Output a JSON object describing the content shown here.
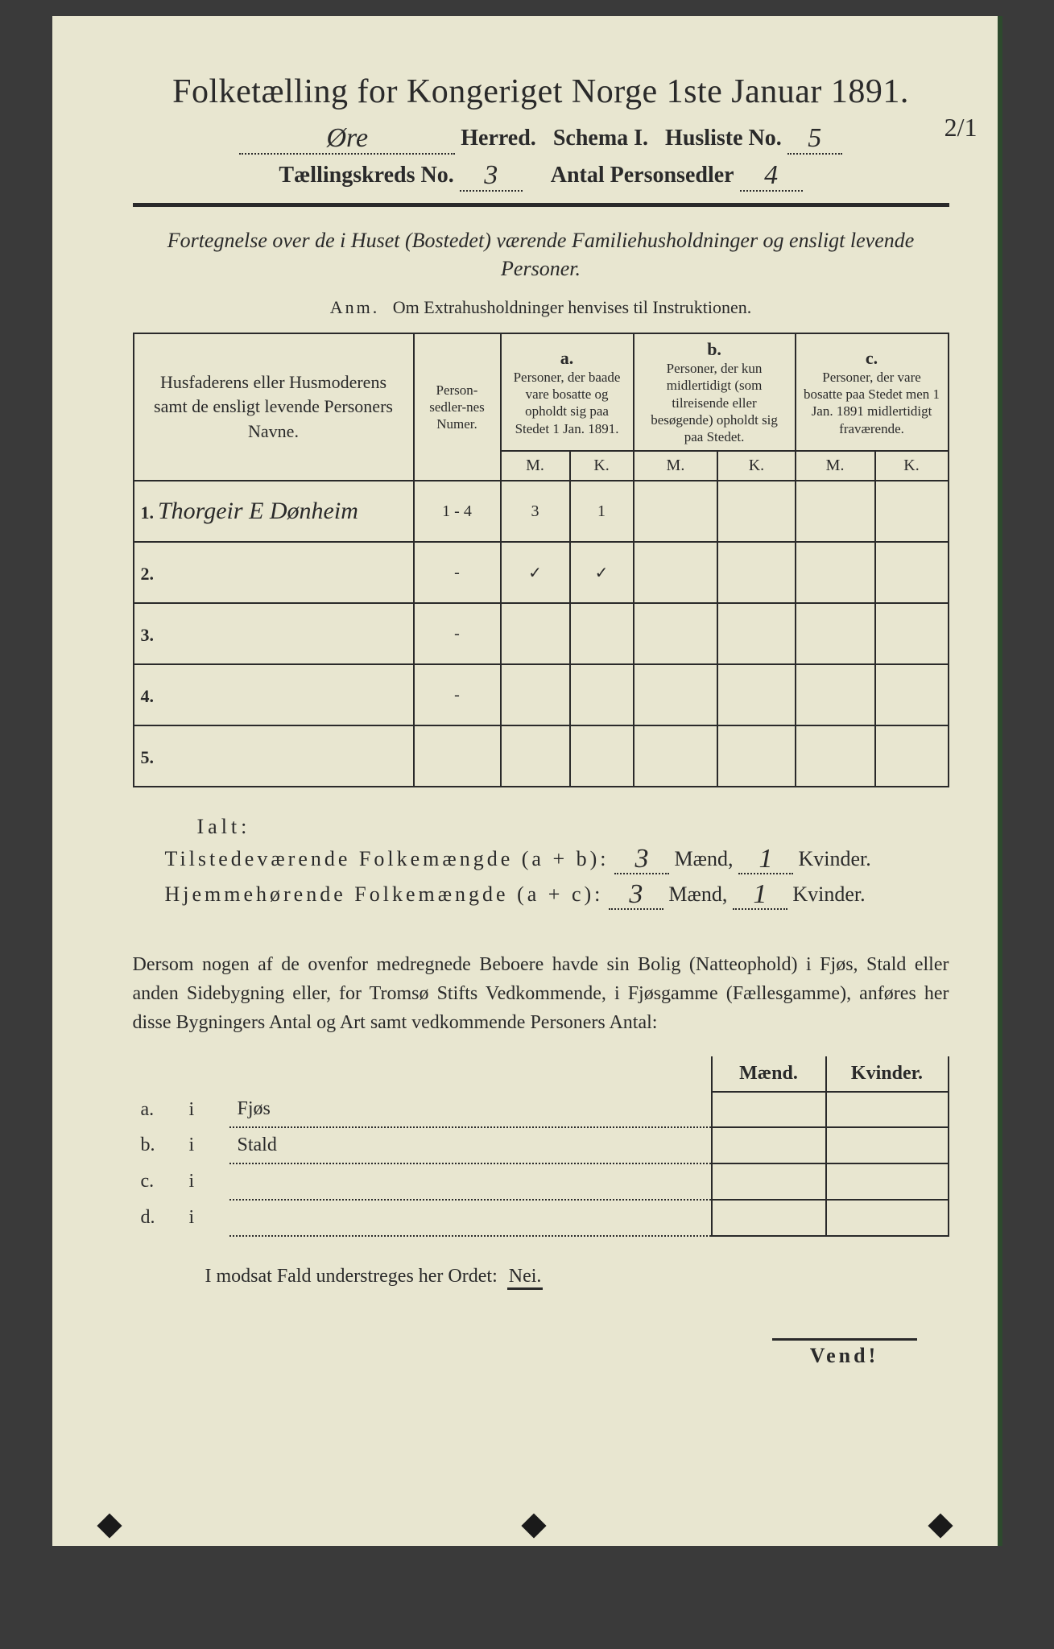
{
  "colors": {
    "paper": "#e8e6d0",
    "ink": "#2a2a2a",
    "page_edge": "#2d4a2d",
    "outer_bg": "#3a3a3a"
  },
  "typography": {
    "title_fontsize_pt": 32,
    "body_fontsize_pt": 18,
    "handwriting_font": "cursive"
  },
  "margin_note": "2/1",
  "title": "Folketælling for Kongeriget Norge 1ste Januar 1891.",
  "line2": {
    "herred_value": "Øre",
    "herred_label": "Herred.",
    "schema_label": "Schema I.",
    "husliste_label": "Husliste No.",
    "husliste_value": "5"
  },
  "line3": {
    "kreds_label": "Tællingskreds No.",
    "kreds_value": "3",
    "antal_label": "Antal Personsedler",
    "antal_value": "4"
  },
  "subtitle": "Fortegnelse over de i Huset (Bostedet) værende Familiehusholdninger og ensligt levende Personer.",
  "anm_label": "Anm.",
  "anm_text": "Om Extrahusholdninger henvises til Instruktionen.",
  "table": {
    "col_names": "Husfaderens eller Husmoderens samt de ensligt levende Personers Navne.",
    "col_personsedler": "Person-sedler-nes Numer.",
    "col_a_label": "a.",
    "col_a_text": "Personer, der baade vare bosatte og opholdt sig paa Stedet 1 Jan. 1891.",
    "col_b_label": "b.",
    "col_b_text": "Personer, der kun midlertidigt (som tilreisende eller besøgende) opholdt sig paa Stedet.",
    "col_c_label": "c.",
    "col_c_text": "Personer, der vare bosatte paa Stedet men 1 Jan. 1891 midlertidigt fraværende.",
    "mk_m": "M.",
    "mk_k": "K.",
    "rows": [
      {
        "num": "1.",
        "name": "Thorgeir E Dønheim",
        "persons": "1 - 4",
        "a_m": "3",
        "a_k": "1",
        "b_m": "",
        "b_k": "",
        "c_m": "",
        "c_k": ""
      },
      {
        "num": "2.",
        "name": "",
        "persons": "-",
        "a_m": "✓",
        "a_k": "✓",
        "b_m": "",
        "b_k": "",
        "c_m": "",
        "c_k": ""
      },
      {
        "num": "3.",
        "name": "",
        "persons": "-",
        "a_m": "",
        "a_k": "",
        "b_m": "",
        "b_k": "",
        "c_m": "",
        "c_k": ""
      },
      {
        "num": "4.",
        "name": "",
        "persons": "-",
        "a_m": "",
        "a_k": "",
        "b_m": "",
        "b_k": "",
        "c_m": "",
        "c_k": ""
      },
      {
        "num": "5.",
        "name": "",
        "persons": "",
        "a_m": "",
        "a_k": "",
        "b_m": "",
        "b_k": "",
        "c_m": "",
        "c_k": ""
      }
    ]
  },
  "ialt_label": "Ialt:",
  "totals": {
    "line1_label": "Tilstedeværende Folkemængde (a + b):",
    "line1_m": "3",
    "line1_k": "1",
    "line2_label": "Hjemmehørende Folkemængde (a + c):",
    "line2_m": "3",
    "line2_k": "1",
    "maend": "Mænd,",
    "kvinder": "Kvinder."
  },
  "paragraph": "Dersom nogen af de ovenfor medregnede Beboere havde sin Bolig (Natteophold) i Fjøs, Stald eller anden Sidebygning eller, for Tromsø Stifts Vedkommende, i Fjøsgamme (Fællesgamme), anføres her disse Bygningers Antal og Art samt vedkommende Personers Antal:",
  "side": {
    "maend": "Mænd.",
    "kvinder": "Kvinder.",
    "rows": [
      {
        "key": "a.",
        "i": "i",
        "label": "Fjøs"
      },
      {
        "key": "b.",
        "i": "i",
        "label": "Stald"
      },
      {
        "key": "c.",
        "i": "i",
        "label": ""
      },
      {
        "key": "d.",
        "i": "i",
        "label": ""
      }
    ]
  },
  "nei_line_pre": "I modsat Fald understreges her Ordet:",
  "nei_word": "Nei.",
  "vend": "Vend!"
}
